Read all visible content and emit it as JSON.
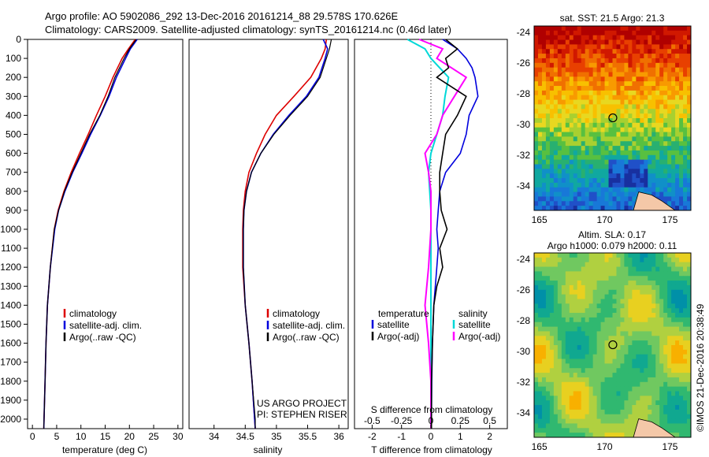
{
  "header": {
    "line1": "Argo profile: AO 5902086_292 13-Dec-2016 20161214_88 29.578S 170.626E",
    "line2": "Climatology: CARS2009. Satellite-adjusted climatology: synTS_20161214.nc (0.46d later)"
  },
  "credit": "©IMOS 21-Dec-2016 20:38:49",
  "project": {
    "line1": "US ARGO PROJECT",
    "line2": "PI: STEPHEN RISER"
  },
  "depth_ticks": [
    0,
    100,
    200,
    300,
    400,
    500,
    600,
    700,
    800,
    900,
    1000,
    1100,
    1200,
    1300,
    1400,
    1500,
    1600,
    1700,
    1800,
    1900,
    2000
  ],
  "colors": {
    "clim": "#dd0000",
    "sat": "#0000dd",
    "argo": "#000000",
    "sal_sat": "#00d8d8",
    "sal_argo": "#ff00ff"
  },
  "legend_profile": [
    "climatology",
    "satellite-adj. clim.",
    "Argo(..raw -QC)"
  ],
  "legend_diff": {
    "temperature_title": "temperature",
    "salinity_title": "salinity",
    "satellite": "satellite",
    "argo": "Argo(-adj)"
  },
  "chart_data": [
    {
      "type": "line",
      "xlabel": "temperature (deg C)",
      "xlim": [
        -1,
        31
      ],
      "xticks": [
        0,
        5,
        10,
        15,
        20,
        25,
        30
      ],
      "ylim": [
        0,
        2050
      ],
      "series": [
        {
          "name": "climatology",
          "depth": [
            0,
            50,
            100,
            200,
            300,
            400,
            500,
            600,
            700,
            800,
            900,
            1000,
            1200,
            1400,
            1600,
            1800,
            2000,
            2050
          ],
          "values": [
            21.2,
            19.8,
            18.5,
            16.6,
            15.0,
            13.2,
            11.5,
            9.7,
            8.0,
            6.5,
            5.3,
            4.5,
            3.7,
            3.1,
            2.8,
            2.6,
            2.4,
            2.35
          ]
        },
        {
          "name": "satellite-adj. clim.",
          "depth": [
            0,
            50,
            100,
            200,
            300,
            400,
            500,
            600,
            700,
            800,
            900,
            1000,
            1200,
            1400,
            1600,
            1800,
            2000,
            2050
          ],
          "values": [
            21.6,
            20.2,
            19.2,
            17.3,
            15.8,
            14.0,
            12.0,
            10.2,
            8.3,
            6.7,
            5.4,
            4.6,
            3.7,
            3.1,
            2.8,
            2.6,
            2.4,
            2.35
          ]
        },
        {
          "name": "Argo(..raw -QC)",
          "depth": [
            0,
            50,
            100,
            200,
            300,
            400,
            500,
            600,
            700,
            800,
            900,
            1000,
            1200,
            1400,
            1600,
            1800,
            2000,
            2050
          ],
          "values": [
            21.4,
            20.0,
            18.9,
            17.0,
            15.6,
            13.9,
            11.8,
            10.0,
            8.2,
            6.6,
            5.4,
            4.5,
            3.7,
            3.1,
            2.8,
            2.6,
            2.4,
            2.35
          ]
        }
      ]
    },
    {
      "type": "line",
      "xlabel": "salinity",
      "xlim": [
        33.6,
        36.15
      ],
      "xticks": [
        34,
        34.5,
        35,
        35.5,
        36
      ],
      "ylim": [
        0,
        2050
      ],
      "series": [
        {
          "name": "climatology",
          "depth": [
            0,
            50,
            100,
            200,
            300,
            400,
            500,
            600,
            700,
            800,
            900,
            1000,
            1200,
            1400,
            1600,
            1800,
            2000,
            2050
          ],
          "values": [
            35.8,
            35.78,
            35.72,
            35.55,
            35.28,
            35.0,
            34.82,
            34.68,
            34.56,
            34.5,
            34.47,
            34.46,
            34.46,
            34.5,
            34.56,
            34.61,
            34.65,
            34.66
          ]
        },
        {
          "name": "satellite-adj. clim.",
          "depth": [
            0,
            50,
            100,
            200,
            300,
            400,
            500,
            600,
            700,
            800,
            900,
            1000,
            1200,
            1400,
            1600,
            1800,
            2000,
            2050
          ],
          "values": [
            35.75,
            35.82,
            35.78,
            35.68,
            35.48,
            35.2,
            34.95,
            34.75,
            34.6,
            34.52,
            34.48,
            34.47,
            34.47,
            34.5,
            34.56,
            34.61,
            34.65,
            34.66
          ]
        },
        {
          "name": "Argo(..raw -QC)",
          "depth": [
            0,
            50,
            100,
            200,
            300,
            400,
            500,
            600,
            700,
            800,
            900,
            1000,
            1200,
            1400,
            1600,
            1800,
            2000,
            2050
          ],
          "values": [
            35.88,
            35.85,
            35.8,
            35.7,
            35.5,
            35.22,
            34.96,
            34.75,
            34.6,
            34.52,
            34.48,
            34.47,
            34.47,
            34.5,
            34.56,
            34.61,
            34.66,
            34.66
          ]
        }
      ]
    },
    {
      "type": "line",
      "xlabel": "T difference from climatology",
      "title": "S difference from climatology",
      "xlim": [
        -2.6,
        2.6
      ],
      "xticks": [
        -2,
        -1,
        0,
        1,
        2
      ],
      "s_ticks": [
        -0.5,
        -0.25,
        0,
        0.25,
        0.5
      ],
      "ylim": [
        0,
        2050
      ],
      "series": [
        {
          "name": "temperature satellite",
          "depth": [
            0,
            50,
            100,
            150,
            200,
            300,
            400,
            500,
            600,
            700,
            800,
            900,
            1000,
            1100,
            1200,
            1400,
            1600,
            1800,
            2000,
            2050
          ],
          "values": [
            0.4,
            0.9,
            1.2,
            1.4,
            1.5,
            1.6,
            1.3,
            1.2,
            1.0,
            0.5,
            0.3,
            0.25,
            0.2,
            0.25,
            0.2,
            0.1,
            0.05,
            0.03,
            0.02,
            0.02
          ]
        },
        {
          "name": "temperature Argo(-adj)",
          "depth": [
            0,
            50,
            100,
            150,
            200,
            300,
            400,
            500,
            600,
            700,
            800,
            900,
            1000,
            1100,
            1200,
            1300,
            1400,
            1600,
            1800,
            2000,
            2050
          ],
          "values": [
            0.5,
            0.9,
            0.5,
            0.6,
            0.2,
            1.2,
            0.9,
            0.5,
            0.4,
            0.3,
            0.3,
            0.35,
            0.55,
            0.3,
            0.4,
            0.2,
            0.1,
            0.05,
            0.02,
            0.02,
            0.02
          ]
        },
        {
          "name": "salinity satellite",
          "depth": [
            0,
            50,
            100,
            200,
            300,
            400,
            500,
            600,
            700,
            800,
            900,
            1000,
            1200,
            1400,
            1600,
            1800,
            2000,
            2050
          ],
          "values": [
            -0.2,
            -0.05,
            0.0,
            0.15,
            0.12,
            0.1,
            0.05,
            0.0,
            -0.02,
            -0.01,
            0.0,
            0.0,
            0.0,
            0.0,
            0.0,
            0.0,
            0.0,
            0.0
          ]
        },
        {
          "name": "salinity Argo(-adj)",
          "depth": [
            0,
            50,
            100,
            200,
            300,
            400,
            500,
            600,
            700,
            800,
            900,
            1000,
            1200,
            1400,
            1600,
            1800,
            2000,
            2050
          ],
          "values": [
            -0.1,
            0.1,
            0.05,
            0.3,
            0.2,
            0.1,
            0.05,
            -0.05,
            -0.02,
            0.0,
            0.0,
            0.0,
            -0.02,
            -0.05,
            -0.02,
            0.0,
            0.0,
            0.0
          ]
        }
      ]
    },
    {
      "type": "heatmap",
      "title": "sat. SST: 21.5 Argo: 21.3",
      "xlim": [
        164.6,
        176.6
      ],
      "ylim": [
        -35.6,
        -23.6
      ],
      "xticks": [
        165,
        170,
        175
      ],
      "yticks": [
        -24,
        -26,
        -28,
        -30,
        -32,
        -34
      ],
      "marker": {
        "lon": 170.626,
        "lat": -29.578
      }
    },
    {
      "type": "heatmap",
      "title": "Altim. SLA: 0.17",
      "subtitle": "Argo h1000: 0.079 h2000: 0.11",
      "xlim": [
        164.6,
        176.6
      ],
      "ylim": [
        -35.6,
        -23.6
      ],
      "xticks": [
        165,
        170,
        175
      ],
      "yticks": [
        -24,
        -26,
        -28,
        -30,
        -32,
        -34
      ],
      "marker": {
        "lon": 170.626,
        "lat": -29.578
      }
    }
  ]
}
